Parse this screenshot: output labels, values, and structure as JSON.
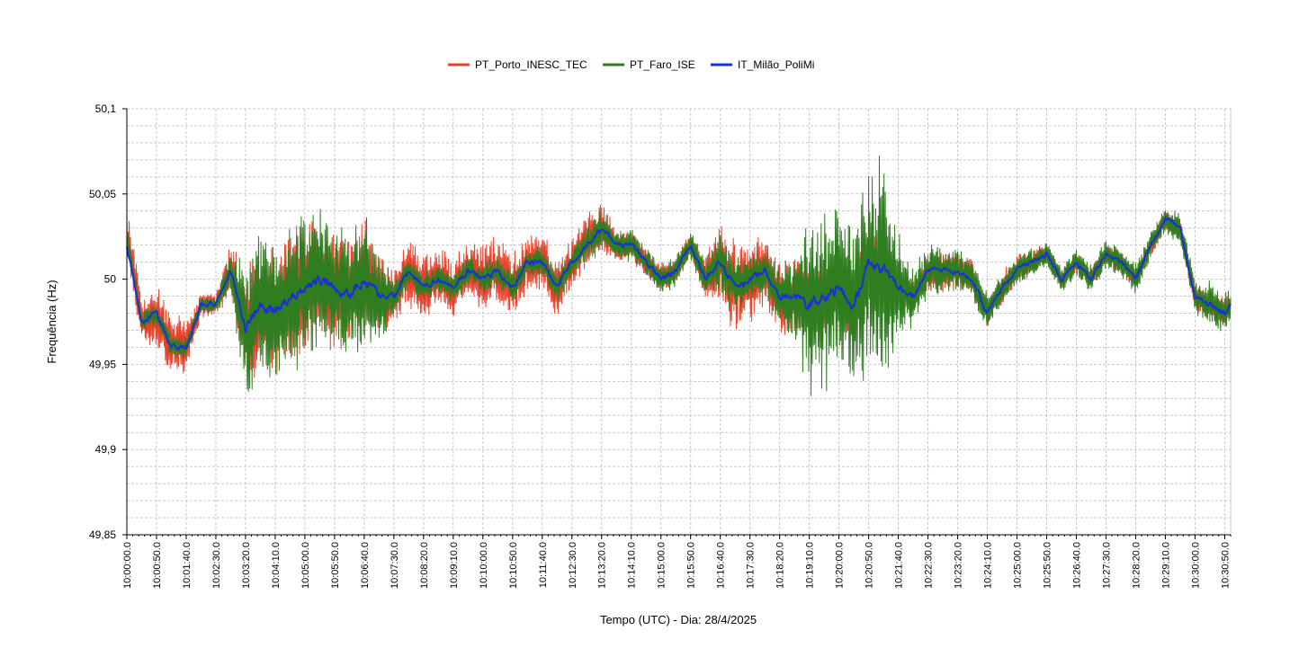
{
  "chart_data": {
    "type": "line",
    "title": "",
    "xlabel": "Tempo (UTC) - Dia: 28/4/2025",
    "ylabel": "Frequência (Hz)",
    "ylim": [
      49.85,
      50.1
    ],
    "y_ticks": [
      "50,1",
      "50,05",
      "50",
      "49,95",
      "49,9",
      "49,85"
    ],
    "y_tick_values": [
      50.1,
      50.05,
      50.0,
      49.95,
      49.9,
      49.85
    ],
    "x_start": "10:00:00",
    "x_end": "10:31:00",
    "x_tick_labels": [
      "10:00:00.0",
      "10:00:50.0",
      "10:01:40.0",
      "10:02:30.0",
      "10:03:20.0",
      "10:04:10.0",
      "10:05:00.0",
      "10:05:50.0",
      "10:06:40.0",
      "10:07:30.0",
      "10:08:20.0",
      "10:09:10.0",
      "10:10:00.0",
      "10:10:50.0",
      "10:11:40.0",
      "10:12:30.0",
      "10:13:20.0",
      "10:14:10.0",
      "10:15:00.0",
      "10:15:50.0",
      "10:16:40.0",
      "10:17:30.0",
      "10:18:20.0",
      "10:19:10.0",
      "10:20:00.0",
      "10:20:50.0",
      "10:21:40.0",
      "10:22:30.0",
      "10:23:20.0",
      "10:24:10.0",
      "10:25:00.0",
      "10:25:50.0",
      "10:26:40.0",
      "10:27:30.0",
      "10:28:20.0",
      "10:29:10.0",
      "10:30:00.0",
      "10:30:50.0"
    ],
    "grid": true,
    "legend_placement": "top-center",
    "series": [
      {
        "name": "PT_Porto_INESC_TEC",
        "color": "#e8412c",
        "x": [
          "10:00:00",
          "10:00:25",
          "10:00:50",
          "10:01:15",
          "10:01:40",
          "10:02:05",
          "10:02:30",
          "10:02:55",
          "10:03:20",
          "10:03:45",
          "10:04:10",
          "10:04:35",
          "10:05:00",
          "10:05:25",
          "10:05:50",
          "10:06:15",
          "10:06:40",
          "10:07:05",
          "10:07:30",
          "10:07:55",
          "10:08:20",
          "10:08:45",
          "10:09:10",
          "10:09:35",
          "10:10:00",
          "10:10:25",
          "10:10:50",
          "10:11:15",
          "10:11:40",
          "10:12:05",
          "10:12:30",
          "10:12:55",
          "10:13:20",
          "10:13:45",
          "10:14:10",
          "10:14:35",
          "10:15:00",
          "10:15:25",
          "10:15:50",
          "10:16:15",
          "10:16:40",
          "10:17:05",
          "10:17:30",
          "10:17:55",
          "10:18:20",
          "10:18:45",
          "10:19:10",
          "10:19:35",
          "10:20:00",
          "10:20:25",
          "10:20:50",
          "10:21:15",
          "10:21:40",
          "10:22:05",
          "10:22:30",
          "10:22:55",
          "10:23:20",
          "10:23:45",
          "10:24:10",
          "10:24:35",
          "10:25:00",
          "10:25:25",
          "10:25:50",
          "10:26:15",
          "10:26:40",
          "10:27:05",
          "10:27:30",
          "10:27:55",
          "10:28:20",
          "10:28:45",
          "10:29:10",
          "10:29:35",
          "10:30:00",
          "10:30:25",
          "10:30:50",
          "10:31:00"
        ],
        "values": [
          50.03,
          49.975,
          49.98,
          49.96,
          49.96,
          49.985,
          49.985,
          50.005,
          49.97,
          49.985,
          49.98,
          49.99,
          49.995,
          50.0,
          49.995,
          49.99,
          50.0,
          49.99,
          49.99,
          50.005,
          49.995,
          50.0,
          49.995,
          50.005,
          50.0,
          50.005,
          49.995,
          50.01,
          50.01,
          49.995,
          50.01,
          50.02,
          50.03,
          50.02,
          50.02,
          50.01,
          50.0,
          50.005,
          50.02,
          50.0,
          50.01,
          49.995,
          50.0,
          50.005,
          49.99,
          49.99,
          49.985,
          49.99,
          49.995,
          49.985,
          50.01,
          50.005,
          49.995,
          49.99,
          50.005,
          50.005,
          50.005,
          50.0,
          49.98,
          49.995,
          50.005,
          50.01,
          50.015,
          50.0,
          50.01,
          50.0,
          50.015,
          50.01,
          50.0,
          50.02,
          50.035,
          50.03,
          49.99,
          49.985,
          49.98,
          49.985
        ],
        "noise": [
          0.012,
          0.012,
          0.018,
          0.018,
          0.014,
          0.008,
          0.006,
          0.014,
          0.034,
          0.036,
          0.034,
          0.034,
          0.036,
          0.036,
          0.034,
          0.03,
          0.034,
          0.024,
          0.016,
          0.02,
          0.018,
          0.016,
          0.016,
          0.016,
          0.018,
          0.02,
          0.018,
          0.018,
          0.016,
          0.016,
          0.014,
          0.016,
          0.014,
          0.01,
          0.008,
          0.008,
          0.008,
          0.008,
          0.008,
          0.012,
          0.024,
          0.026,
          0.024,
          0.018,
          0.02,
          0.022,
          0.02,
          0.018,
          0.02,
          0.02,
          0.02,
          0.016,
          0.014,
          0.012,
          0.01,
          0.012,
          0.01,
          0.01,
          0.008,
          0.008,
          0.008,
          0.006,
          0.006,
          0.006,
          0.006,
          0.006,
          0.006,
          0.006,
          0.006,
          0.006,
          0.006,
          0.006,
          0.008,
          0.008,
          0.008,
          0.008
        ]
      },
      {
        "name": "PT_Faro_ISE",
        "color": "#2e7d1f",
        "x": [
          "10:00:00",
          "10:00:25",
          "10:00:50",
          "10:01:15",
          "10:01:40",
          "10:02:05",
          "10:02:30",
          "10:02:55",
          "10:03:20",
          "10:03:45",
          "10:04:10",
          "10:04:35",
          "10:05:00",
          "10:05:25",
          "10:05:50",
          "10:06:15",
          "10:06:40",
          "10:07:05",
          "10:07:30",
          "10:07:55",
          "10:08:20",
          "10:08:45",
          "10:09:10",
          "10:09:35",
          "10:10:00",
          "10:10:25",
          "10:10:50",
          "10:11:15",
          "10:11:40",
          "10:12:05",
          "10:12:30",
          "10:12:55",
          "10:13:20",
          "10:13:45",
          "10:14:10",
          "10:14:35",
          "10:15:00",
          "10:15:25",
          "10:15:50",
          "10:16:15",
          "10:16:40",
          "10:17:05",
          "10:17:30",
          "10:17:55",
          "10:18:20",
          "10:18:45",
          "10:19:10",
          "10:19:35",
          "10:20:00",
          "10:20:25",
          "10:20:50",
          "10:21:15",
          "10:21:40",
          "10:22:05",
          "10:22:30",
          "10:22:55",
          "10:23:20",
          "10:23:45",
          "10:24:10",
          "10:24:35",
          "10:25:00",
          "10:25:25",
          "10:25:50",
          "10:26:15",
          "10:26:40",
          "10:27:05",
          "10:27:30",
          "10:27:55",
          "10:28:20",
          "10:28:45",
          "10:29:10",
          "10:29:35",
          "10:30:00",
          "10:30:25",
          "10:30:50",
          "10:31:00"
        ],
        "values": [
          50.025,
          49.975,
          49.98,
          49.96,
          49.96,
          49.985,
          49.985,
          50.005,
          49.97,
          49.985,
          49.98,
          49.99,
          49.995,
          50.0,
          49.995,
          49.99,
          50.0,
          49.99,
          49.99,
          50.005,
          49.995,
          50.0,
          49.995,
          50.005,
          50.0,
          50.005,
          49.995,
          50.01,
          50.01,
          49.995,
          50.01,
          50.02,
          50.03,
          50.02,
          50.02,
          50.01,
          50.0,
          50.005,
          50.02,
          50.0,
          50.01,
          49.995,
          50.0,
          50.005,
          49.99,
          49.99,
          49.985,
          49.99,
          49.995,
          49.985,
          50.01,
          50.005,
          49.995,
          49.99,
          50.005,
          50.005,
          50.005,
          50.0,
          49.98,
          49.995,
          50.005,
          50.01,
          50.015,
          50.0,
          50.01,
          50.0,
          50.015,
          50.01,
          50.0,
          50.02,
          50.035,
          50.03,
          49.99,
          49.985,
          49.98,
          49.985
        ],
        "noise": [
          0.005,
          0.006,
          0.006,
          0.006,
          0.006,
          0.005,
          0.005,
          0.01,
          0.04,
          0.042,
          0.04,
          0.04,
          0.038,
          0.036,
          0.034,
          0.03,
          0.036,
          0.026,
          0.01,
          0.008,
          0.008,
          0.008,
          0.008,
          0.008,
          0.008,
          0.008,
          0.008,
          0.008,
          0.008,
          0.008,
          0.008,
          0.01,
          0.01,
          0.008,
          0.008,
          0.008,
          0.008,
          0.008,
          0.008,
          0.01,
          0.016,
          0.016,
          0.014,
          0.012,
          0.016,
          0.024,
          0.05,
          0.05,
          0.046,
          0.04,
          0.06,
          0.06,
          0.03,
          0.016,
          0.014,
          0.012,
          0.012,
          0.012,
          0.01,
          0.008,
          0.008,
          0.008,
          0.008,
          0.008,
          0.008,
          0.008,
          0.008,
          0.008,
          0.008,
          0.008,
          0.008,
          0.008,
          0.01,
          0.012,
          0.01,
          0.01
        ]
      },
      {
        "name": "IT_Milão_PoliMi",
        "color": "#1a2fd6",
        "x": [
          "10:00:00",
          "10:00:25",
          "10:00:50",
          "10:01:15",
          "10:01:40",
          "10:02:05",
          "10:02:30",
          "10:02:55",
          "10:03:20",
          "10:03:45",
          "10:04:10",
          "10:04:35",
          "10:05:00",
          "10:05:25",
          "10:05:50",
          "10:06:15",
          "10:06:40",
          "10:07:05",
          "10:07:30",
          "10:07:55",
          "10:08:20",
          "10:08:45",
          "10:09:10",
          "10:09:35",
          "10:10:00",
          "10:10:25",
          "10:10:50",
          "10:11:15",
          "10:11:40",
          "10:12:05",
          "10:12:30",
          "10:12:55",
          "10:13:20",
          "10:13:45",
          "10:14:10",
          "10:14:35",
          "10:15:00",
          "10:15:25",
          "10:15:50",
          "10:16:15",
          "10:16:40",
          "10:17:05",
          "10:17:30",
          "10:17:55",
          "10:18:20",
          "10:18:45",
          "10:19:10",
          "10:19:35",
          "10:20:00",
          "10:20:25",
          "10:20:50",
          "10:21:15",
          "10:21:40",
          "10:22:05",
          "10:22:30",
          "10:22:55",
          "10:23:20",
          "10:23:45",
          "10:24:10",
          "10:24:35",
          "10:25:00",
          "10:25:25",
          "10:25:50",
          "10:26:15",
          "10:26:40",
          "10:27:05",
          "10:27:30",
          "10:27:55",
          "10:28:20",
          "10:28:45",
          "10:29:10",
          "10:29:35",
          "10:30:00",
          "10:30:25",
          "10:30:50",
          "10:31:00"
        ],
        "values": [
          50.02,
          49.975,
          49.98,
          49.96,
          49.96,
          49.985,
          49.985,
          50.005,
          49.97,
          49.985,
          49.98,
          49.99,
          49.995,
          50.0,
          49.995,
          49.99,
          50.0,
          49.99,
          49.99,
          50.005,
          49.995,
          50.0,
          49.995,
          50.005,
          50.0,
          50.005,
          49.995,
          50.01,
          50.01,
          49.995,
          50.01,
          50.02,
          50.03,
          50.02,
          50.02,
          50.01,
          50.0,
          50.005,
          50.02,
          50.0,
          50.01,
          49.995,
          50.0,
          50.005,
          49.99,
          49.99,
          49.985,
          49.99,
          49.995,
          49.985,
          50.01,
          50.005,
          49.995,
          49.99,
          50.005,
          50.005,
          50.005,
          50.0,
          49.98,
          49.995,
          50.005,
          50.01,
          50.015,
          50.0,
          50.01,
          50.0,
          50.015,
          50.01,
          50.0,
          50.02,
          50.035,
          50.03,
          49.99,
          49.985,
          49.98,
          49.985
        ],
        "noise": [
          0.003,
          0.003,
          0.003,
          0.003,
          0.003,
          0.003,
          0.003,
          0.003,
          0.006,
          0.006,
          0.006,
          0.006,
          0.006,
          0.006,
          0.006,
          0.006,
          0.006,
          0.005,
          0.004,
          0.003,
          0.003,
          0.003,
          0.003,
          0.003,
          0.003,
          0.003,
          0.003,
          0.003,
          0.003,
          0.003,
          0.003,
          0.003,
          0.003,
          0.003,
          0.003,
          0.003,
          0.003,
          0.003,
          0.003,
          0.003,
          0.004,
          0.004,
          0.004,
          0.004,
          0.004,
          0.004,
          0.006,
          0.006,
          0.006,
          0.006,
          0.006,
          0.006,
          0.005,
          0.004,
          0.003,
          0.003,
          0.003,
          0.003,
          0.003,
          0.003,
          0.003,
          0.003,
          0.003,
          0.003,
          0.003,
          0.003,
          0.003,
          0.003,
          0.003,
          0.003,
          0.003,
          0.003,
          0.003,
          0.003,
          0.003,
          0.003
        ]
      }
    ]
  }
}
